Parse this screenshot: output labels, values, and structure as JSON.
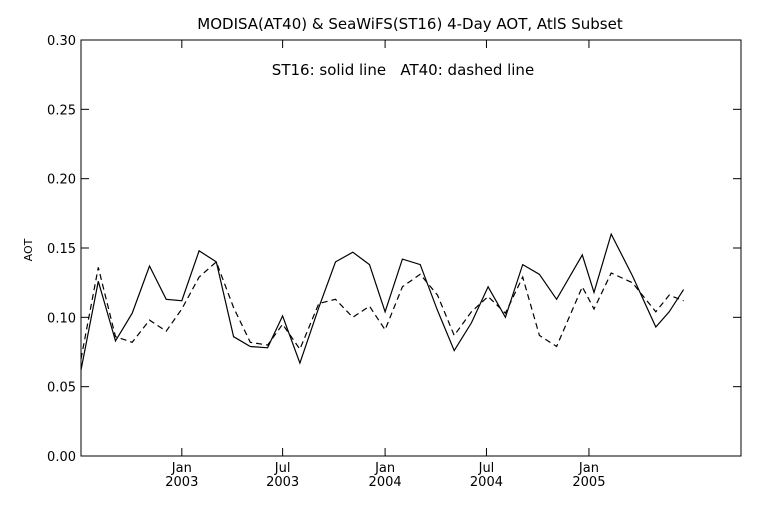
{
  "chart_data": {
    "type": "line",
    "title": "MODISA(AT40) & SeaWiFS(ST16) 4-Day AOT, AtlS Subset",
    "annotation": "ST16: solid line   AT40: dashed line",
    "ylabel": "AOT",
    "xlabel": "",
    "ylim": [
      0.0,
      0.3
    ],
    "yticks": [
      "0.00",
      "0.05",
      "0.10",
      "0.15",
      "0.20",
      "0.25",
      "0.30"
    ],
    "xlim": [
      "2002-07-04",
      "2005-10-01"
    ],
    "xticks": [
      {
        "date": "2003-01-01",
        "month": "Jan",
        "year": "2003"
      },
      {
        "date": "2003-07-01",
        "month": "Jul",
        "year": "2003"
      },
      {
        "date": "2004-01-01",
        "month": "Jan",
        "year": "2004"
      },
      {
        "date": "2004-07-01",
        "month": "Jul",
        "year": "2004"
      },
      {
        "date": "2005-01-01",
        "month": "Jan",
        "year": "2005"
      }
    ],
    "grid": false,
    "series": [
      {
        "name": "ST16",
        "style": "solid",
        "color": "#000000",
        "points": [
          [
            "2002-07-04",
            0.062
          ],
          [
            "2002-08-04",
            0.126
          ],
          [
            "2002-09-04",
            0.083
          ],
          [
            "2002-10-04",
            0.103
          ],
          [
            "2002-11-04",
            0.137
          ],
          [
            "2002-12-04",
            0.113
          ],
          [
            "2003-01-01",
            0.112
          ],
          [
            "2003-02-01",
            0.148
          ],
          [
            "2003-03-04",
            0.14
          ],
          [
            "2003-04-04",
            0.086
          ],
          [
            "2003-05-04",
            0.079
          ],
          [
            "2003-06-04",
            0.078
          ],
          [
            "2003-07-01",
            0.101
          ],
          [
            "2003-08-01",
            0.067
          ],
          [
            "2003-09-04",
            0.107
          ],
          [
            "2003-10-04",
            0.14
          ],
          [
            "2003-11-04",
            0.147
          ],
          [
            "2003-12-04",
            0.138
          ],
          [
            "2004-01-01",
            0.104
          ],
          [
            "2004-02-01",
            0.142
          ],
          [
            "2004-03-04",
            0.138
          ],
          [
            "2004-04-04",
            0.105
          ],
          [
            "2004-05-04",
            0.076
          ],
          [
            "2004-06-04",
            0.096
          ],
          [
            "2004-07-04",
            0.122
          ],
          [
            "2004-08-04",
            0.1
          ],
          [
            "2004-09-04",
            0.138
          ],
          [
            "2004-10-04",
            0.131
          ],
          [
            "2004-11-04",
            0.113
          ],
          [
            "2004-12-20",
            0.145
          ],
          [
            "2005-01-10",
            0.118
          ],
          [
            "2005-02-10",
            0.16
          ],
          [
            "2005-03-20",
            0.13
          ],
          [
            "2005-05-01",
            0.093
          ],
          [
            "2005-05-25",
            0.104
          ],
          [
            "2005-06-20",
            0.12
          ]
        ]
      },
      {
        "name": "AT40",
        "style": "dashed",
        "color": "#000000",
        "points": [
          [
            "2002-07-04",
            0.07
          ],
          [
            "2002-08-04",
            0.136
          ],
          [
            "2002-09-04",
            0.086
          ],
          [
            "2002-10-04",
            0.082
          ],
          [
            "2002-11-04",
            0.098
          ],
          [
            "2002-12-04",
            0.09
          ],
          [
            "2003-01-01",
            0.106
          ],
          [
            "2003-02-01",
            0.129
          ],
          [
            "2003-03-04",
            0.14
          ],
          [
            "2003-04-04",
            0.107
          ],
          [
            "2003-05-04",
            0.082
          ],
          [
            "2003-06-04",
            0.08
          ],
          [
            "2003-07-01",
            0.095
          ],
          [
            "2003-08-01",
            0.077
          ],
          [
            "2003-09-04",
            0.11
          ],
          [
            "2003-10-04",
            0.113
          ],
          [
            "2003-11-04",
            0.1
          ],
          [
            "2003-12-04",
            0.108
          ],
          [
            "2004-01-01",
            0.091
          ],
          [
            "2004-02-01",
            0.122
          ],
          [
            "2004-03-04",
            0.131
          ],
          [
            "2004-04-04",
            0.116
          ],
          [
            "2004-05-04",
            0.087
          ],
          [
            "2004-06-04",
            0.104
          ],
          [
            "2004-07-04",
            0.115
          ],
          [
            "2004-08-04",
            0.103
          ],
          [
            "2004-09-04",
            0.129
          ],
          [
            "2004-10-04",
            0.087
          ],
          [
            "2004-11-04",
            0.079
          ],
          [
            "2004-12-20",
            0.122
          ],
          [
            "2005-01-10",
            0.106
          ],
          [
            "2005-02-10",
            0.132
          ],
          [
            "2005-03-20",
            0.125
          ],
          [
            "2005-05-01",
            0.104
          ],
          [
            "2005-05-25",
            0.116
          ],
          [
            "2005-06-20",
            0.112
          ]
        ]
      }
    ]
  }
}
